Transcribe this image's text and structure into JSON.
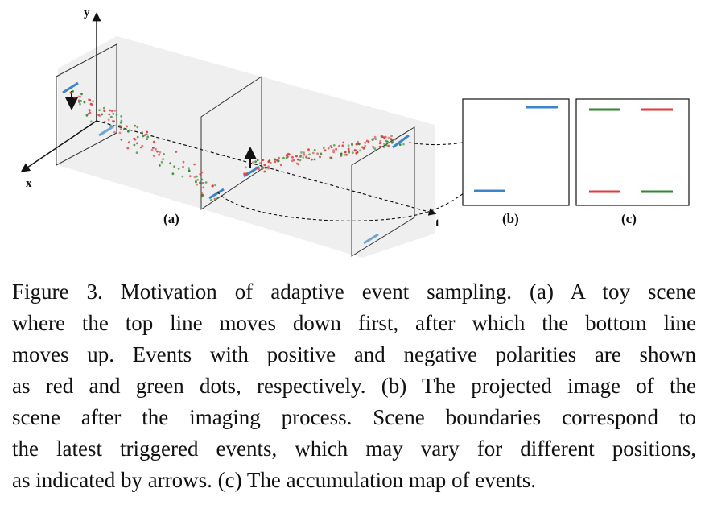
{
  "figure": {
    "axes": {
      "y": "y",
      "x": "x",
      "t": "t"
    },
    "panels": {
      "a": "(a)",
      "b": "(b)",
      "c": "(c)"
    },
    "colors": {
      "line_blue": "#3a86c8",
      "event_red": "#e03a3a",
      "event_green": "#2f8a2f",
      "volume_gray": "#e8e8e8"
    }
  },
  "caption": {
    "lines": [
      "Figure 3. Motivation of adaptive event sampling. (a) A toy scene",
      "where the top line moves down first, after which the bottom line",
      "moves up. Events with positive and negative polarities are shown",
      "as red and green dots, respectively. (b) The projected image of the",
      "scene after the imaging process. Scene boundaries correspond to",
      "the latest triggered events, which may vary for different positions,",
      "as indicated by arrows. (c) The accumulation map of events."
    ]
  }
}
